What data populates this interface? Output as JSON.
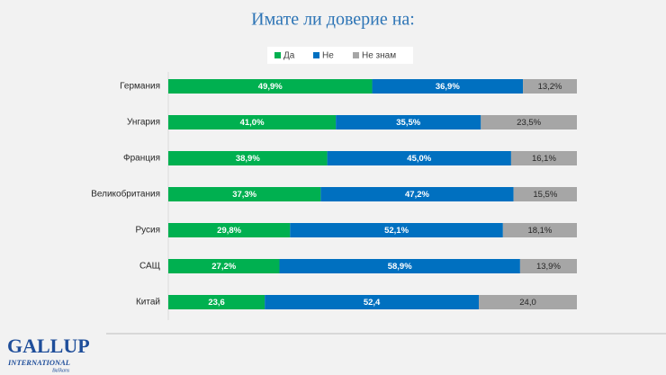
{
  "chart_data": {
    "type": "stacked-bar-horizontal",
    "title": "Имате ли доверие на:",
    "categories": [
      "Германия",
      "Унгария",
      "Франция",
      "Великобритания",
      "Русия",
      "САЩ",
      "Китай"
    ],
    "xlim": [
      0,
      100
    ],
    "series": [
      {
        "name": "Да",
        "color": "#00b050",
        "values": [
          49.9,
          41.0,
          38.9,
          37.3,
          29.8,
          27.2,
          23.6
        ],
        "value_labels": [
          "49,9%",
          "41,0%",
          "38,9%",
          "37,3%",
          "29,8%",
          "27,2%",
          "23,6"
        ]
      },
      {
        "name": "Не",
        "color": "#0070c0",
        "values": [
          36.9,
          35.5,
          45.0,
          47.2,
          52.1,
          58.9,
          52.4
        ],
        "value_labels": [
          "36,9%",
          "35,5%",
          "45,0%",
          "47,2%",
          "52,1%",
          "58,9%",
          "52,4"
        ]
      },
      {
        "name": "Не знам",
        "color": "#a6a6a6",
        "values": [
          13.2,
          23.5,
          16.1,
          15.5,
          18.1,
          13.9,
          24.0
        ],
        "value_labels": [
          "13,2%",
          "23,5%",
          "16,1%",
          "15,5%",
          "18,1%",
          "13,9%",
          "24,0"
        ]
      }
    ],
    "legend": "top"
  },
  "logo": {
    "name": "GALLUP",
    "line2": "INTERNATIONAL",
    "line3": "Balkans"
  }
}
